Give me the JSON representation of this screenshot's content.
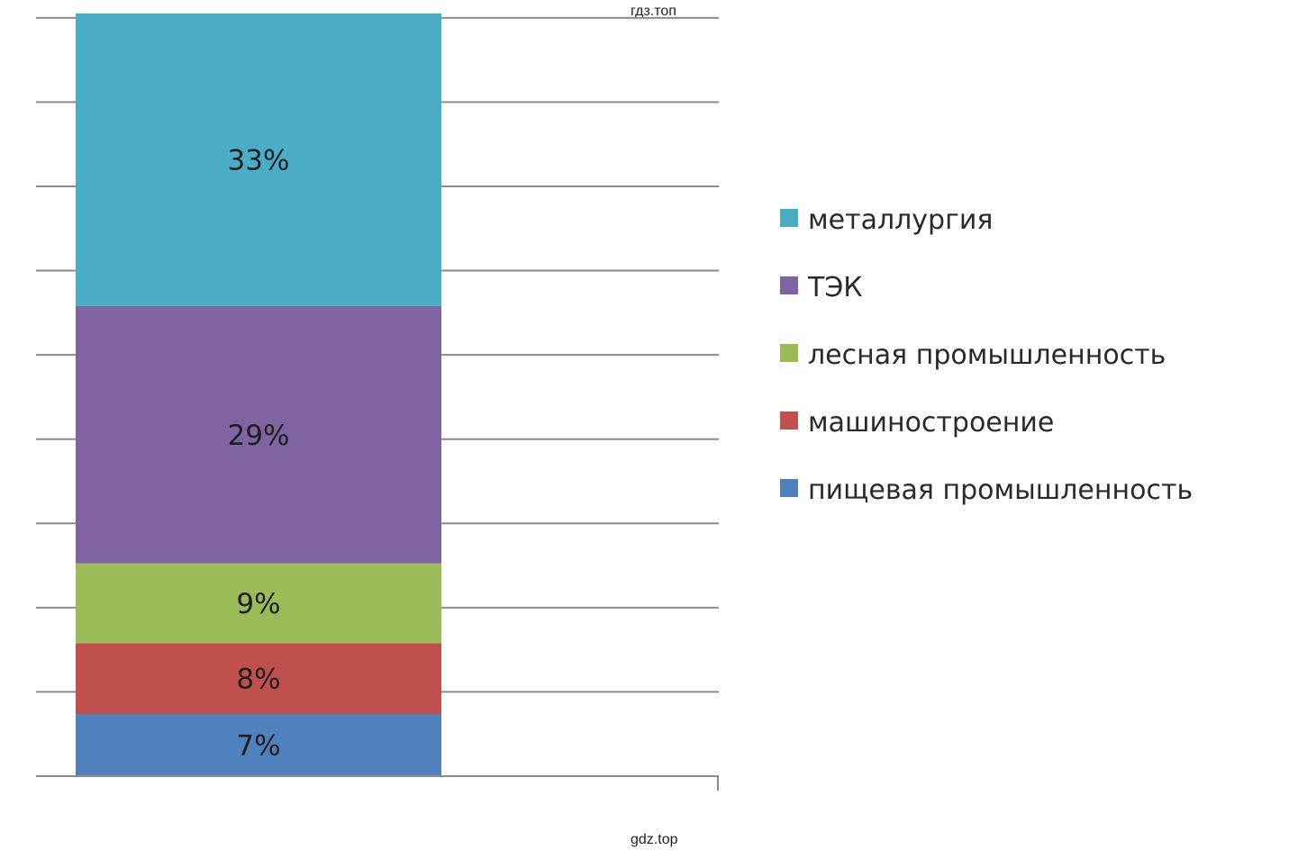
{
  "watermarks": {
    "top": "гдз.топ",
    "bottom": "gdz.top"
  },
  "chart_data": {
    "type": "bar",
    "stacked": true,
    "categories": [
      ""
    ],
    "series": [
      {
        "name": "пищевая промышленность",
        "values": [
          7
        ],
        "label": "7%",
        "color": "#4f81bd"
      },
      {
        "name": "машиностроение",
        "values": [
          8
        ],
        "label": "8%",
        "color": "#c0504d"
      },
      {
        "name": "лесная промышленность",
        "values": [
          9
        ],
        "label": "9%",
        "color": "#9bbb59"
      },
      {
        "name": "ТЭК",
        "values": [
          29
        ],
        "label": "29%",
        "color": "#8064a2"
      },
      {
        "name": "металлургия",
        "values": [
          33
        ],
        "label": "33%",
        "color": "#4bacc6"
      }
    ],
    "legend_order": [
      "металлургия",
      "ТЭК",
      "лесная промышленность",
      "машиностроение",
      "пищевая промышленность"
    ],
    "ylim": [
      0,
      90
    ],
    "y_gridline_step": 9.5,
    "grid": true,
    "legend": "right",
    "axis_labels_visible": false
  }
}
